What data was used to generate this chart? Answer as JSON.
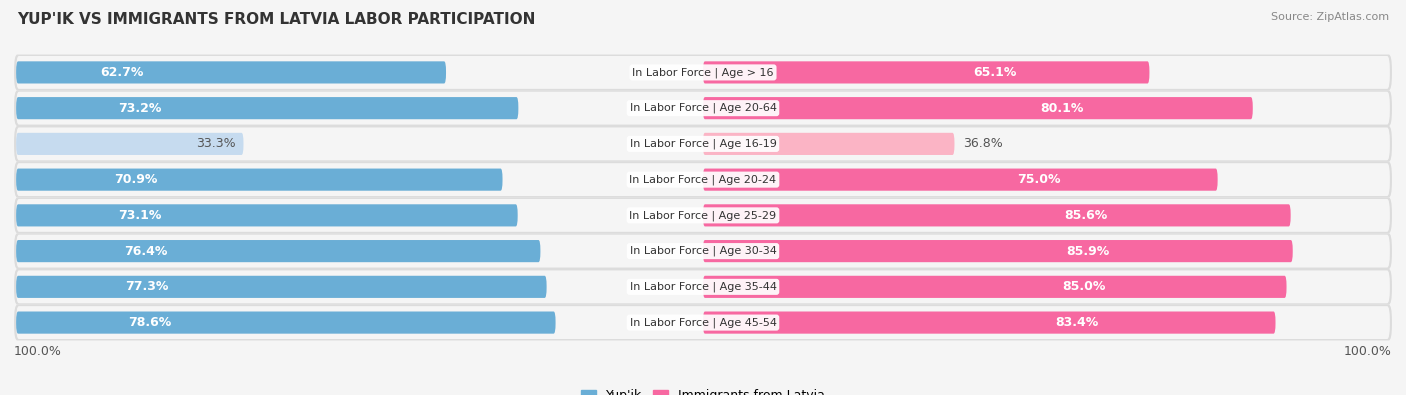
{
  "title": "Yup'ik vs Immigrants from Latvia Labor Participation",
  "source": "Source: ZipAtlas.com",
  "categories": [
    "In Labor Force | Age > 16",
    "In Labor Force | Age 20-64",
    "In Labor Force | Age 16-19",
    "In Labor Force | Age 20-24",
    "In Labor Force | Age 25-29",
    "In Labor Force | Age 30-34",
    "In Labor Force | Age 35-44",
    "In Labor Force | Age 45-54"
  ],
  "yupik_values": [
    62.7,
    73.2,
    33.3,
    70.9,
    73.1,
    76.4,
    77.3,
    78.6
  ],
  "latvia_values": [
    65.1,
    80.1,
    36.8,
    75.0,
    85.6,
    85.9,
    85.0,
    83.4
  ],
  "yupik_color": "#6aaed6",
  "latvia_color": "#f768a1",
  "yupik_light_color": "#c6dbef",
  "latvia_light_color": "#fbb4c5",
  "bar_height": 0.62,
  "row_bg_outer": "#dcdcdc",
  "row_bg_inner": "#f5f5f5",
  "background_color": "#f5f5f5",
  "max_value": 100.0,
  "label_fontsize": 9,
  "title_fontsize": 11,
  "source_fontsize": 8,
  "category_fontsize": 8,
  "legend_fontsize": 9
}
